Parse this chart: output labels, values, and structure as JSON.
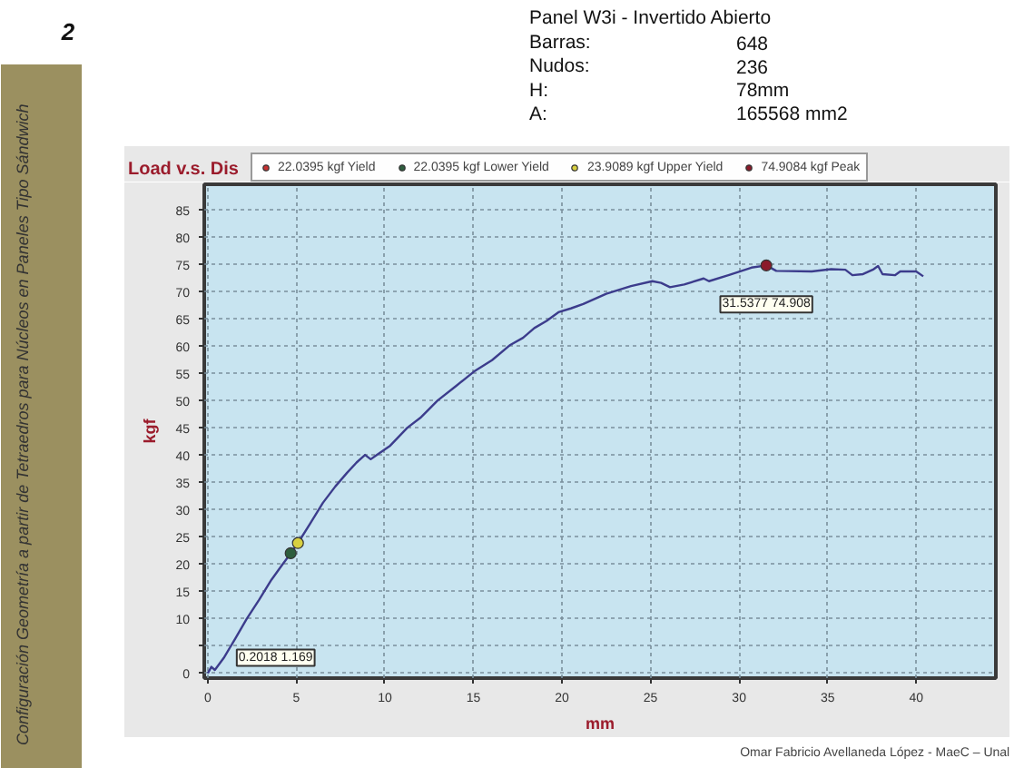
{
  "chart_data": {
    "type": "line",
    "title": "Load v.s. Dis",
    "xlabel": "mm",
    "ylabel": "kgf",
    "xlim": [
      -0.2,
      44.5
    ],
    "ylim": [
      -0.9,
      89.8
    ],
    "xticks": [
      0,
      5,
      10,
      15,
      20,
      25,
      30,
      35,
      40
    ],
    "yticks": [
      0,
      {
        "value": 5,
        "label": null
      },
      10,
      15,
      20,
      25,
      30,
      35,
      40,
      45,
      50,
      55,
      60,
      65,
      70,
      75,
      80,
      85
    ],
    "grid": true,
    "legend": "top",
    "series": [
      {
        "color": "#3c3c8c",
        "x": [
          0.0,
          0.2018,
          0.4,
          0.9,
          1.54,
          2.2,
          2.9,
          3.6,
          4.2,
          4.68,
          5.09,
          5.8,
          6.5,
          7.2,
          7.86,
          8.4,
          8.88,
          9.2,
          9.5,
          10.3,
          11.27,
          12.0,
          12.98,
          14.0,
          15.03,
          16.05,
          17.08,
          17.8,
          18.44,
          19.13,
          19.8,
          20.5,
          21.2,
          22.5,
          23.9,
          25.1,
          25.6,
          26.1,
          26.9,
          28.0,
          28.3,
          29.4,
          30.7,
          31.5377,
          32.1,
          34.1,
          35.2,
          36.0,
          36.4,
          37.0,
          37.6,
          37.85,
          38.1,
          38.8,
          39.1,
          40.0,
          40.4
        ],
        "values": [
          0.0,
          1.169,
          0.6,
          2.8,
          6.3,
          10.0,
          13.5,
          17.2,
          19.9,
          22.0,
          23.9,
          27.6,
          31.3,
          34.3,
          36.8,
          38.7,
          40.1,
          39.3,
          40.0,
          41.8,
          45.1,
          46.9,
          50.1,
          52.7,
          55.4,
          57.5,
          60.3,
          61.6,
          63.4,
          64.7,
          66.3,
          67.0,
          67.8,
          69.7,
          71.1,
          72.0,
          71.7,
          70.9,
          71.4,
          72.5,
          72.0,
          73.1,
          74.5,
          74.9,
          73.9,
          73.8,
          74.2,
          74.1,
          73.1,
          73.3,
          74.2,
          74.8,
          73.3,
          73.1,
          73.8,
          73.8,
          72.9
        ]
      },
      {
        "type": "scatter",
        "name": "22.0395 kgf Yield",
        "color": "#c83232",
        "marker": "circle"
      },
      {
        "type": "scatter",
        "name": "22.0395 kgf Lower Yield",
        "color": "#2e5e3e",
        "marker": "circle",
        "x": [
          4.68
        ],
        "values": [
          22.0395
        ]
      },
      {
        "type": "scatter",
        "name": "23.9089 kgf Upper Yield",
        "color": "#d8d040",
        "marker": "circle",
        "x": [
          5.09
        ],
        "values": [
          23.9089
        ]
      },
      {
        "type": "scatter",
        "name": "74.9084 kgf Peak",
        "color": "#8b1a2a",
        "marker": "circle",
        "x": [
          31.5377
        ],
        "values": [
          74.9084
        ]
      }
    ],
    "annotations": [
      "2",
      "Panel W3i - Invertido Abierto",
      "Barras:",
      "648",
      "Nudos:",
      "236",
      "H:",
      "78mm",
      "A:",
      "165568 mm2",
      "Configuración Geometría a partir de Tetraedros para Núcleos en Paneles Tipo Sándwich",
      "Omar Fabricio Avellaneda López - MaeC – Unal",
      {
        "text": "0.2018 1.169",
        "x": 0.2018,
        "y": 1.169
      },
      {
        "text": "31.5377 74.908",
        "x": 31.5377,
        "y": 74.908
      }
    ]
  }
}
